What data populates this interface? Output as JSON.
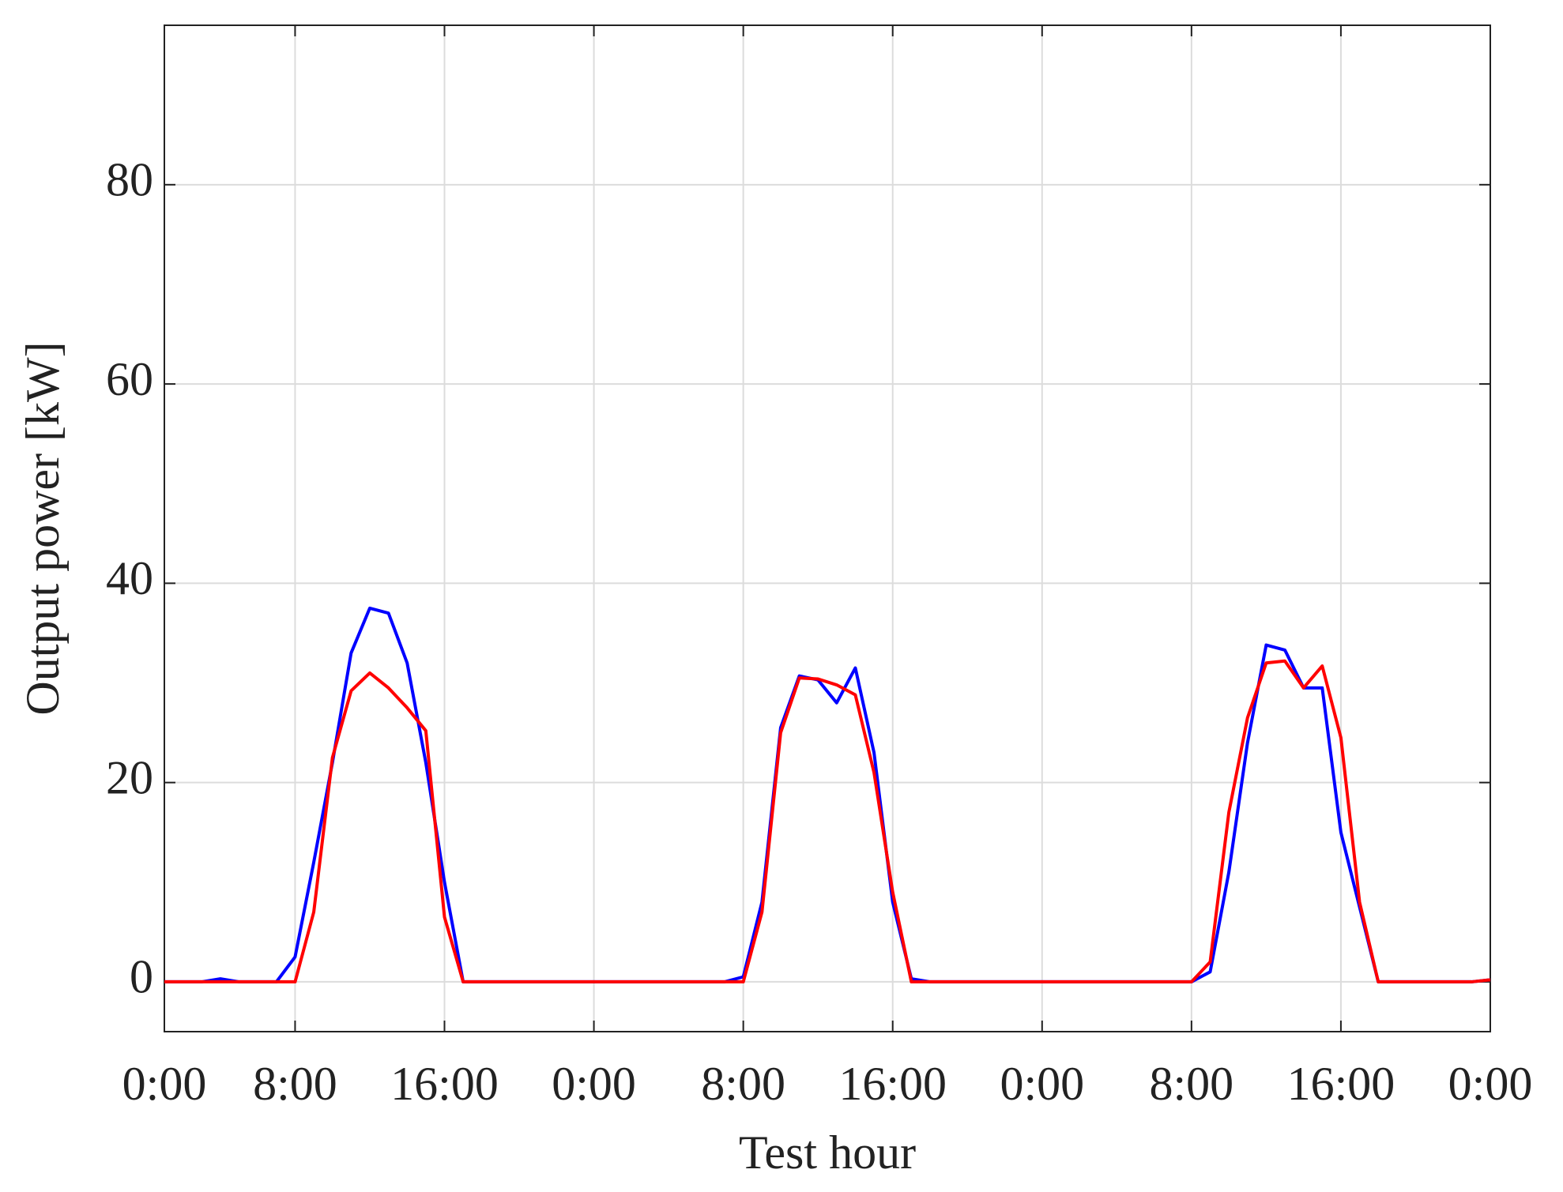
{
  "chart_data": {
    "type": "line",
    "xlabel": "Test hour",
    "ylabel": "Output power [kW]",
    "x": [
      1,
      2,
      3,
      4,
      5,
      6,
      7,
      8,
      9,
      10,
      11,
      12,
      13,
      14,
      15,
      16,
      17,
      18,
      19,
      20,
      21,
      22,
      23,
      24,
      25,
      26,
      27,
      28,
      29,
      30,
      31,
      32,
      33,
      34,
      35,
      36,
      37,
      38,
      39,
      40,
      41,
      42,
      43,
      44,
      45,
      46,
      47,
      48,
      49,
      50,
      51,
      52,
      53,
      54,
      55,
      56,
      57,
      58,
      59,
      60,
      61,
      62,
      63,
      64,
      65,
      66,
      67,
      68,
      69,
      70,
      71,
      72
    ],
    "series": [
      {
        "color": "#0000ff",
        "values": [
          0,
          0,
          0,
          0.3,
          0,
          0,
          0,
          2.5,
          12,
          22,
          33,
          37.5,
          37,
          32,
          22,
          10,
          0,
          0,
          0,
          0,
          0,
          0,
          0,
          0,
          0,
          0,
          0,
          0,
          0,
          0,
          0,
          0.5,
          8,
          25.5,
          30.7,
          30.3,
          28,
          31.5,
          23,
          8,
          0.3,
          0,
          0,
          0,
          0,
          0,
          0,
          0,
          0,
          0,
          0,
          0,
          0,
          0,
          0,
          0,
          1,
          11,
          24,
          33.8,
          33.3,
          29.5,
          29.5,
          15,
          7.5,
          0,
          0,
          0,
          0,
          0,
          0,
          0.2
        ]
      },
      {
        "color": "#ff0000",
        "values": [
          0,
          0,
          0,
          0,
          0,
          0,
          0,
          0,
          7,
          22.5,
          29.2,
          31,
          29.5,
          27.5,
          25.2,
          6.5,
          0,
          0,
          0,
          0,
          0,
          0,
          0,
          0,
          0,
          0,
          0,
          0,
          0,
          0,
          0,
          0,
          7,
          25,
          30.5,
          30.4,
          29.8,
          28.8,
          21,
          9,
          0,
          0,
          0,
          0,
          0,
          0,
          0,
          0,
          0,
          0,
          0,
          0,
          0,
          0,
          0,
          0,
          2,
          17,
          26.5,
          32,
          32.2,
          29.5,
          31.7,
          24.5,
          8,
          0,
          0,
          0,
          0,
          0,
          0,
          0.2
        ]
      }
    ],
    "xlim": [
      1,
      72
    ],
    "xticks": [
      {
        "value": 1,
        "label": "0:00"
      },
      {
        "value": 8,
        "label": "8:00"
      },
      {
        "value": 16,
        "label": "16:00"
      },
      {
        "value": 24,
        "label": "0:00"
      },
      {
        "value": 32,
        "label": "8:00"
      },
      {
        "value": 40,
        "label": "16:00"
      },
      {
        "value": 48,
        "label": "0:00"
      },
      {
        "value": 56,
        "label": "8:00"
      },
      {
        "value": 64,
        "label": "16:00"
      },
      {
        "value": 72,
        "label": "0:00"
      }
    ],
    "ylim": [
      -5,
      96
    ],
    "yticks": [
      0,
      20,
      40,
      60,
      80
    ],
    "grid": true
  }
}
